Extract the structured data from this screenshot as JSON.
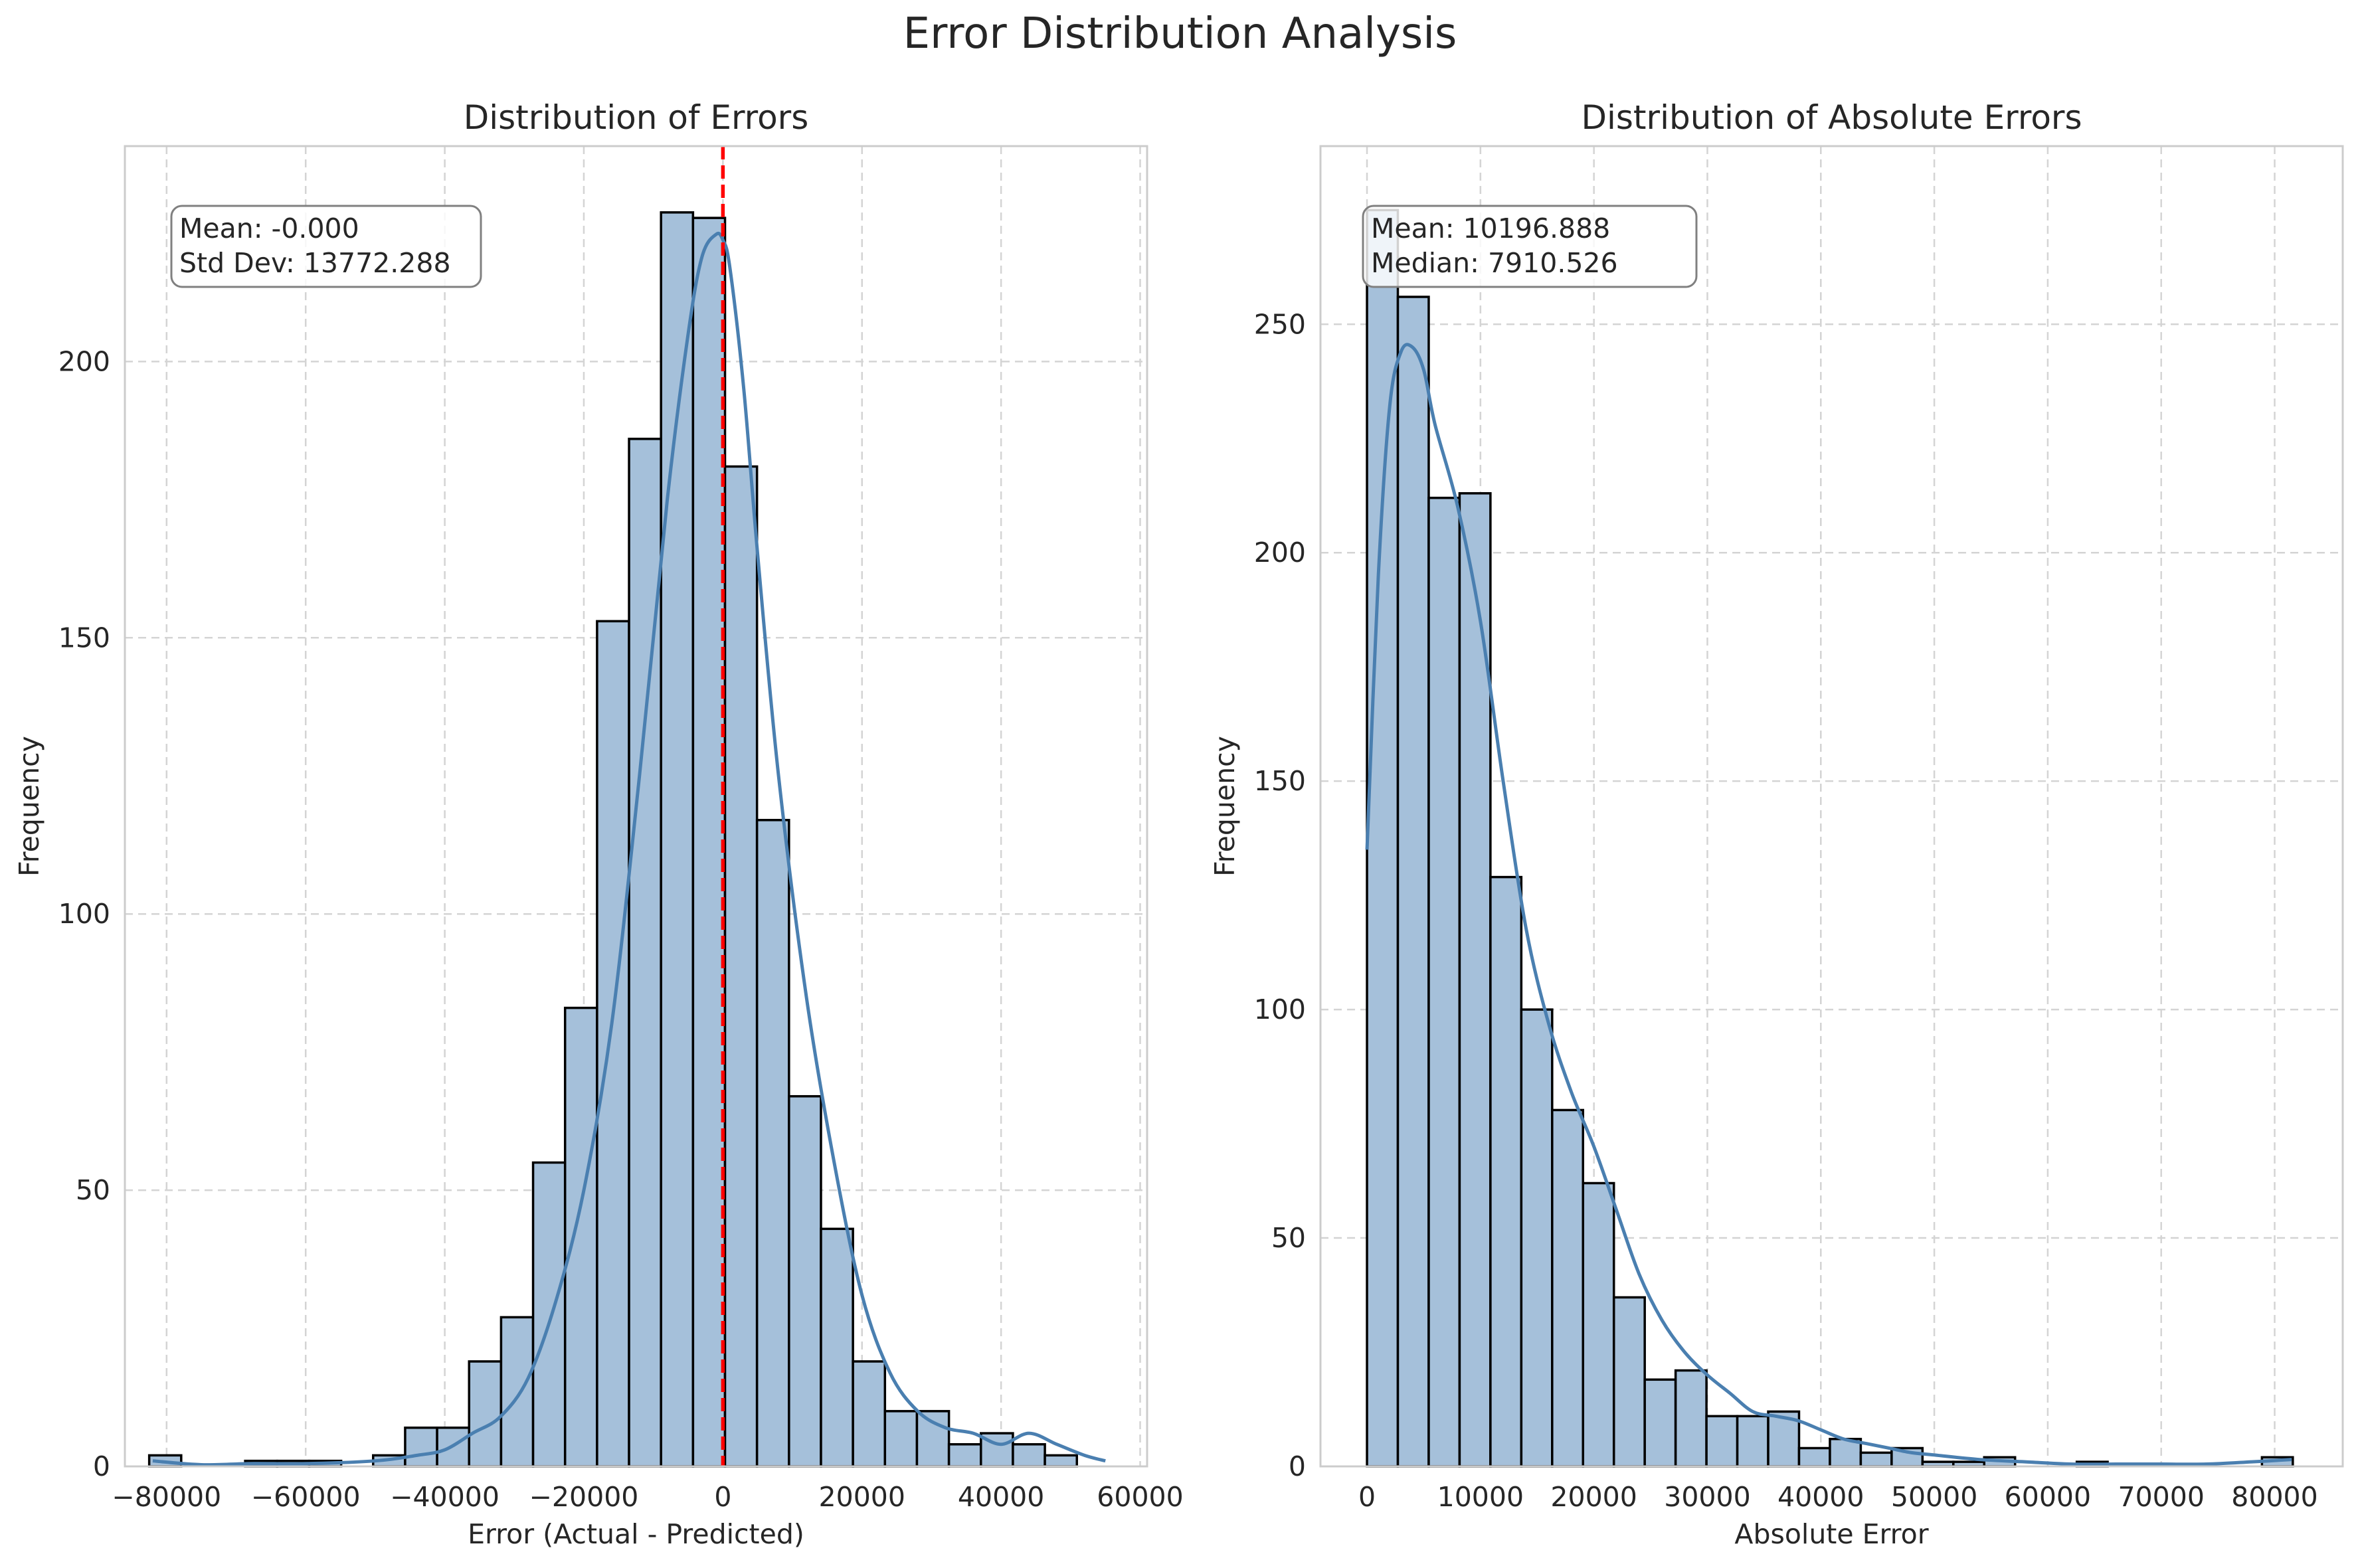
{
  "figure": {
    "title": "Error Distribution Analysis"
  },
  "colors": {
    "bar_fill": "#a5c0da",
    "bar_edge": "#000000",
    "kde": "#4a7fb0",
    "mean_line": "#ff0000",
    "grid": "#d4d4d4",
    "frame": "#cccccc"
  },
  "chart_data": [
    {
      "type": "bar",
      "subtype": "histogram_with_kde",
      "title": "Distribution of Errors",
      "xlabel": "Error (Actual - Predicted)",
      "ylabel": "Frequency",
      "xlim": [
        -86000,
        61000
      ],
      "ylim": [
        0,
        239
      ],
      "xticks": [
        -80000,
        -60000,
        -40000,
        -20000,
        0,
        20000,
        40000,
        60000
      ],
      "xtick_labels": [
        "−80000",
        "−60000",
        "−40000",
        "−20000",
        "0",
        "20000",
        "40000",
        "60000"
      ],
      "yticks": [
        0,
        50,
        100,
        150,
        200
      ],
      "ytick_labels": [
        "0",
        "50",
        "100",
        "150",
        "200"
      ],
      "bin_start": -82500,
      "bin_width": 4600,
      "values": [
        2,
        0,
        0,
        1,
        1,
        1,
        0,
        2,
        7,
        7,
        19,
        27,
        55,
        83,
        153,
        186,
        227,
        226,
        181,
        117,
        67,
        43,
        19,
        10,
        10,
        4,
        6,
        4,
        2
      ],
      "kde": {
        "x": [
          -82000,
          -75000,
          -68000,
          -60000,
          -50000,
          -44000,
          -40000,
          -36000,
          -32000,
          -28000,
          -24000,
          -20000,
          -16000,
          -12000,
          -8000,
          -5000,
          -3000,
          -1000,
          0,
          1000,
          3000,
          5000,
          8000,
          12000,
          16000,
          20000,
          24000,
          28000,
          32000,
          36000,
          40000,
          44000,
          48000,
          52000,
          55000
        ],
        "y": [
          1,
          0.3,
          0.5,
          0.5,
          1,
          2,
          3,
          6,
          9,
          16,
          30,
          50,
          80,
          125,
          175,
          205,
          219,
          223,
          222,
          217,
          195,
          165,
          125,
          85,
          55,
          31,
          17,
          10,
          7,
          6,
          4,
          6,
          4,
          2,
          1
        ]
      },
      "mean_line_x": 0,
      "annotation": {
        "lines": [
          "Mean: -0.000",
          "Std Dev: 13772.288"
        ]
      }
    },
    {
      "type": "bar",
      "subtype": "histogram_with_kde",
      "title": "Distribution of Absolute Errors",
      "xlabel": "Absolute Error",
      "ylabel": "Frequency",
      "xlim": [
        -4100,
        86000
      ],
      "ylim": [
        0,
        289
      ],
      "xticks": [
        0,
        10000,
        20000,
        30000,
        40000,
        50000,
        60000,
        70000,
        80000
      ],
      "xtick_labels": [
        "0",
        "10000",
        "20000",
        "30000",
        "40000",
        "50000",
        "60000",
        "70000",
        "80000"
      ],
      "yticks": [
        0,
        50,
        100,
        150,
        200,
        250
      ],
      "ytick_labels": [
        "0",
        "50",
        "100",
        "150",
        "200",
        "250"
      ],
      "bin_start": 0,
      "bin_width": 2720,
      "values": [
        275,
        256,
        212,
        213,
        129,
        100,
        78,
        62,
        37,
        19,
        21,
        11,
        11,
        12,
        4,
        6,
        3,
        4,
        1,
        1,
        2,
        0,
        0,
        1,
        0,
        0,
        0,
        0,
        0,
        2
      ],
      "kde": {
        "x": [
          0,
          1000,
          2000,
          3000,
          4000,
          5000,
          6000,
          8000,
          10000,
          12000,
          14000,
          16000,
          18000,
          20000,
          22000,
          24000,
          26000,
          28000,
          30000,
          32000,
          34000,
          36000,
          38000,
          40000,
          42000,
          44000,
          46000,
          48000,
          50000,
          54000,
          58000,
          62000,
          66000,
          70000,
          74000,
          78000,
          81500
        ],
        "y": [
          135,
          195,
          232,
          244,
          245,
          240,
          228,
          210,
          185,
          150,
          118,
          97,
          82,
          70,
          56,
          42,
          32,
          25,
          20,
          16,
          12,
          11,
          10,
          8,
          6,
          5,
          4,
          3,
          2.5,
          1.5,
          1,
          0.5,
          0.5,
          0.5,
          0.5,
          1,
          1.5
        ]
      },
      "annotation": {
        "lines": [
          "Mean: 10196.888",
          "Median: 7910.526"
        ]
      }
    }
  ]
}
